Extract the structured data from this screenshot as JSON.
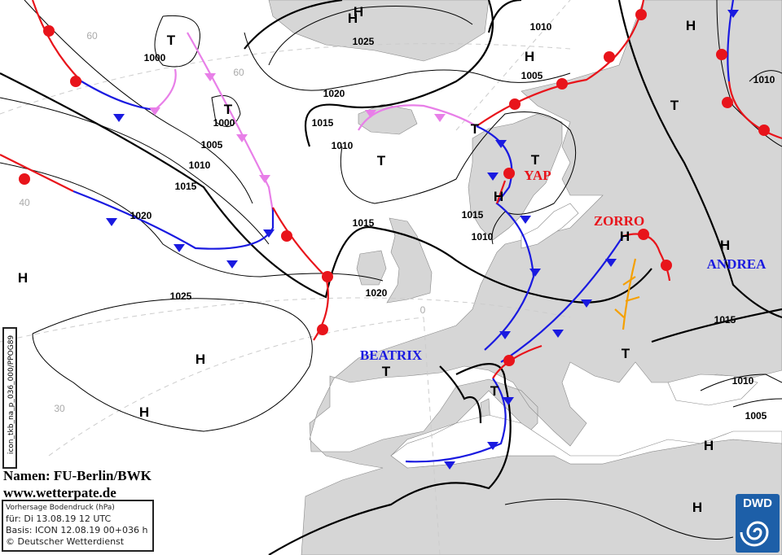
{
  "map": {
    "colors": {
      "land": "#d6d6d6",
      "sea": "#ffffff",
      "warm_front": "#e8141b",
      "cold_front": "#1a1ae0",
      "occlusion": "#e87fe8",
      "trough": "#f5a000",
      "isobar": "#000000"
    },
    "pressure_systems": [
      "H",
      "T",
      "T",
      "H",
      "H",
      "T",
      "T",
      "T",
      "H",
      "H",
      "H",
      "T",
      "H",
      "T",
      "H",
      "H",
      "H",
      "T",
      "H",
      "T",
      "H"
    ],
    "isobar_labels": [
      "1000",
      "1000",
      "1005",
      "1010",
      "1015",
      "1020",
      "1025",
      "1025",
      "1020",
      "1015",
      "1010",
      "1015",
      "1010",
      "1010",
      "1005",
      "1010",
      "1015",
      "1020",
      "1015",
      "1010",
      "1005"
    ],
    "grid_labels": [
      "60",
      "60",
      "40",
      "30",
      "0"
    ],
    "names": [
      {
        "text": "YAP",
        "color": "#e8141b"
      },
      {
        "text": "ZORRO",
        "color": "#e8141b"
      },
      {
        "text": "ANDREA",
        "color": "#1a1ae0"
      },
      {
        "text": "BEATRIX",
        "color": "#1a1ae0"
      }
    ]
  },
  "credits": {
    "names": "Namen: FU-Berlin/BWK",
    "url": "www.wetterpate.de"
  },
  "info": {
    "title": "Vorhersage Bodendruck (hPa)",
    "valid": "für:  Di 13.08.19  12 UTC",
    "basis": "Basis: ICON  12.08.19 00+036 h",
    "copyright": "© Deutscher Wetterdienst"
  },
  "model_id": "icon_tkb_na_p_036_000/PPOG89",
  "logo": {
    "text": "DWD",
    "icon": "dwd-swirl-icon"
  }
}
